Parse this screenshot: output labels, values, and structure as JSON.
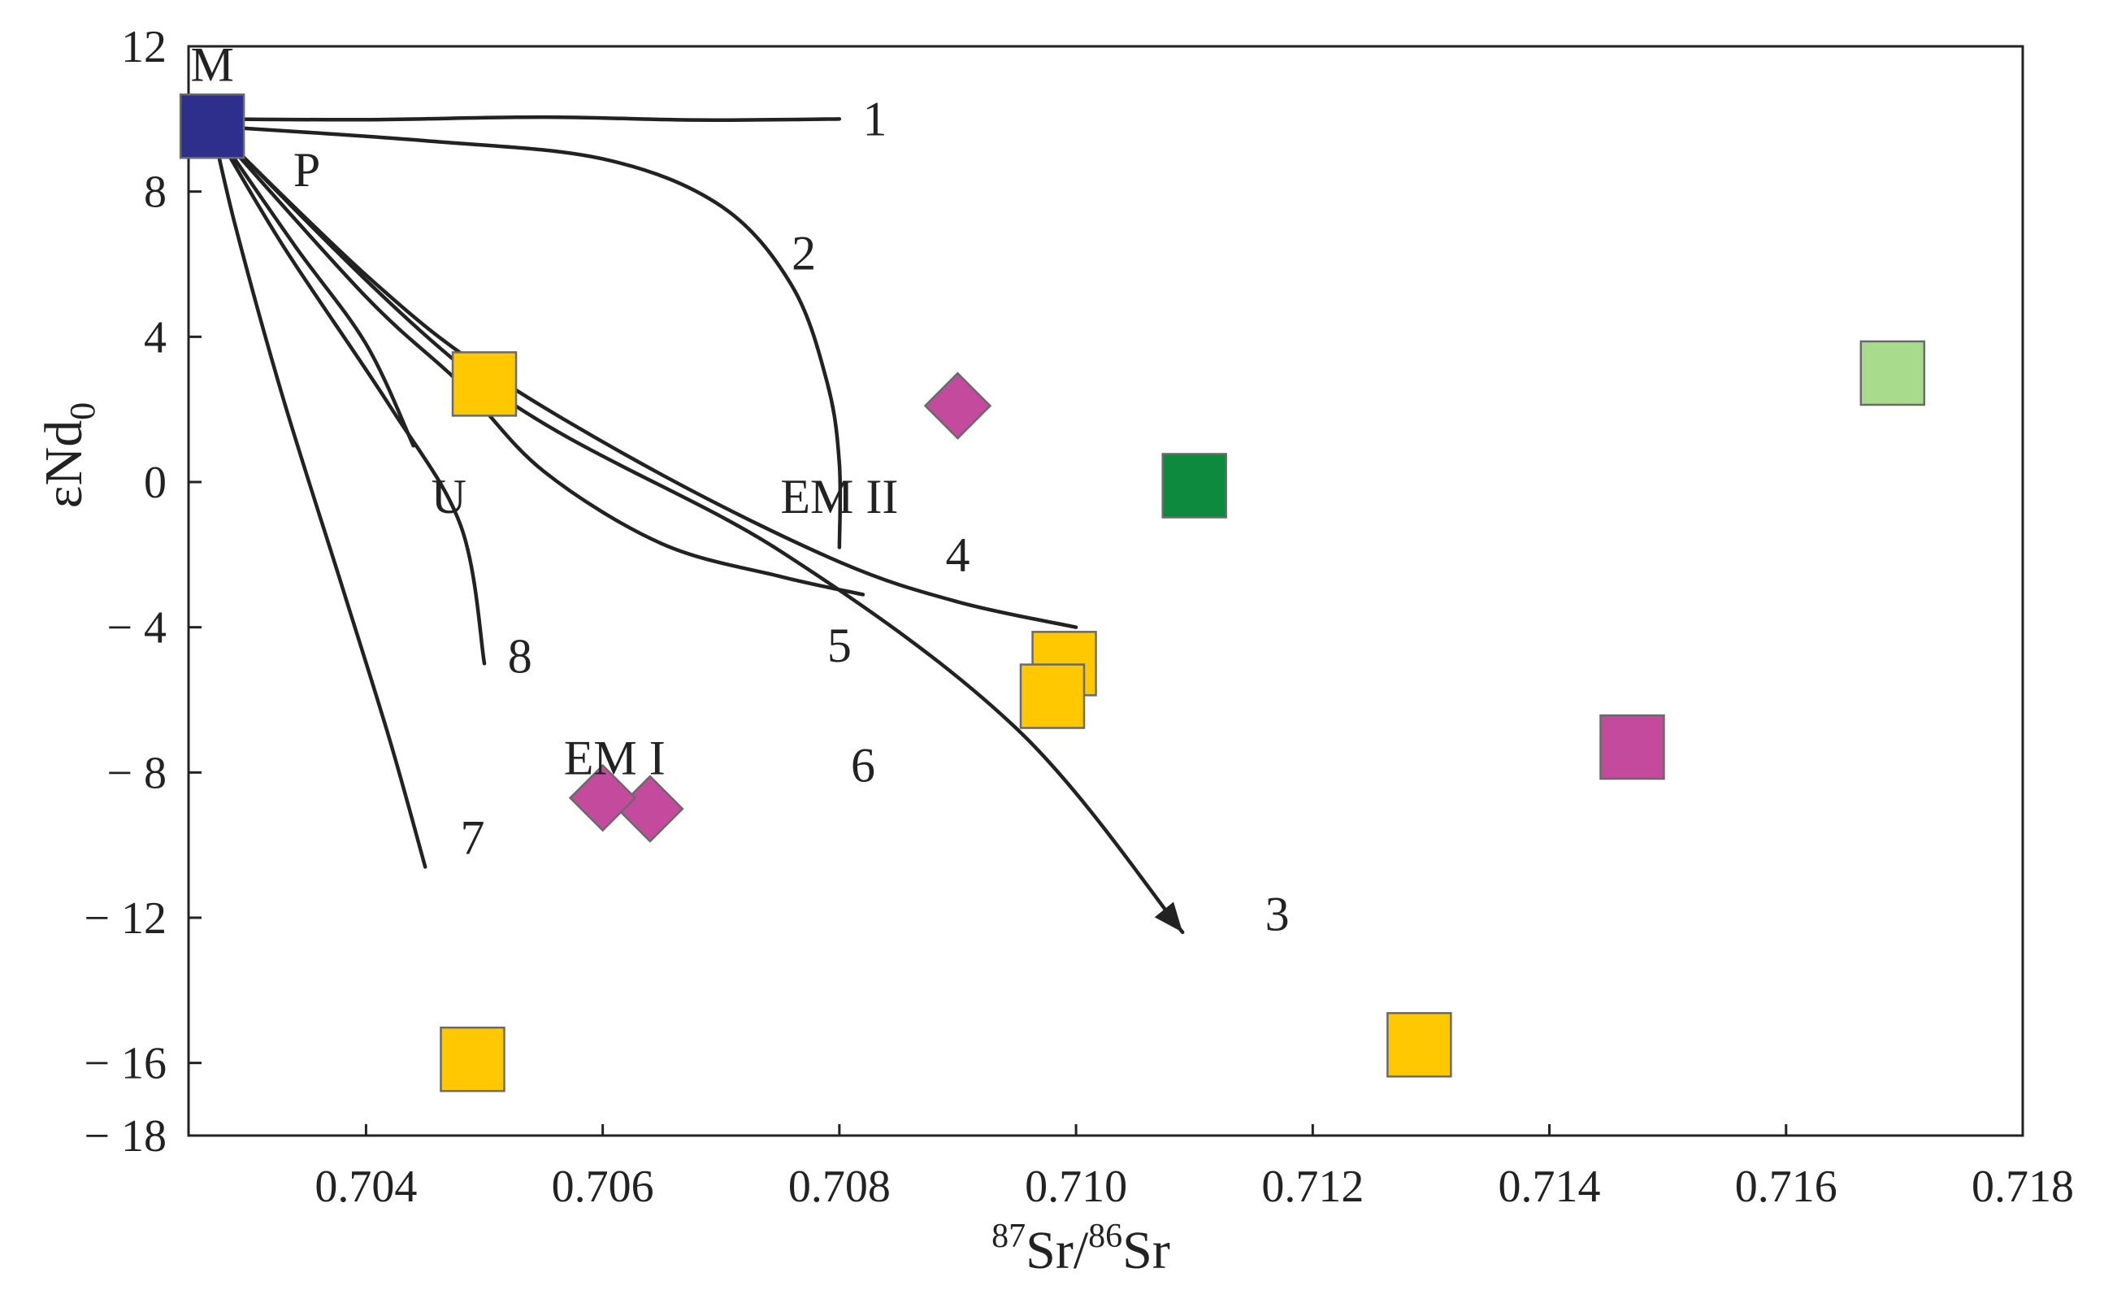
{
  "chart_data": {
    "type": "scatter",
    "title": "",
    "xlabel_sup1": "87",
    "xlabel_mid": "Sr/",
    "xlabel_sup2": "86",
    "xlabel_end": "Sr",
    "ylabel_main": "εNd",
    "ylabel_sub": "0",
    "xlim": [
      0.7025,
      0.718
    ],
    "ylim": [
      -18,
      12
    ],
    "x_ticks": [
      0.704,
      0.706,
      0.708,
      0.71,
      0.712,
      0.714,
      0.716,
      0.718
    ],
    "x_tick_labels": [
      "0.704",
      "0.706",
      "0.708",
      "0.710",
      "0.712",
      "0.714",
      "0.716",
      "0.718"
    ],
    "y_ticks": [
      12,
      8,
      4,
      0,
      -4,
      -8,
      -12,
      -16,
      -18
    ],
    "y_tick_labels": [
      "12",
      "8",
      "4",
      "0",
      "− 4",
      "− 8",
      "− 12",
      "− 16",
      "− 18"
    ],
    "grid": false,
    "colors": {
      "yellow": "#FFC800",
      "magenta": "#C44A9E",
      "navy": "#2E2E8C",
      "green": "#0E8A3E",
      "lightgreen": "#A8DC8C",
      "ink": "#222222"
    },
    "points": [
      {
        "shape": "square",
        "color": "#2E2E8C",
        "x": 0.7027,
        "y": 9.8
      },
      {
        "shape": "square",
        "color": "#FFC800",
        "x": 0.705,
        "y": 2.7
      },
      {
        "shape": "square",
        "color": "#FFC800",
        "x": 0.7099,
        "y": -5.0
      },
      {
        "shape": "square",
        "color": "#FFC800",
        "x": 0.7098,
        "y": -5.9
      },
      {
        "shape": "square",
        "color": "#FFC800",
        "x": 0.7049,
        "y": -15.9
      },
      {
        "shape": "square",
        "color": "#FFC800",
        "x": 0.7129,
        "y": -15.5
      },
      {
        "shape": "diamond",
        "color": "#C44A9E",
        "x": 0.709,
        "y": 2.1
      },
      {
        "shape": "diamond",
        "color": "#C44A9E",
        "x": 0.7064,
        "y": -9.0
      },
      {
        "shape": "diamond",
        "color": "#C44A9E",
        "x": 0.706,
        "y": -8.7
      },
      {
        "shape": "square",
        "color": "#0E8A3E",
        "x": 0.711,
        "y": -0.1
      },
      {
        "shape": "square",
        "color": "#C44A9E",
        "x": 0.7147,
        "y": -7.3
      },
      {
        "shape": "square",
        "color": "#A8DC8C",
        "x": 0.7169,
        "y": 3.0
      }
    ],
    "curves": [
      {
        "name": "1",
        "points": [
          [
            0.7027,
            10.0
          ],
          [
            0.704,
            9.98
          ],
          [
            0.7055,
            10.05
          ],
          [
            0.7068,
            9.97
          ],
          [
            0.708,
            10.0
          ]
        ]
      },
      {
        "name": "2",
        "points": [
          [
            0.7027,
            9.8
          ],
          [
            0.7045,
            9.4
          ],
          [
            0.706,
            8.9
          ],
          [
            0.707,
            7.6
          ],
          [
            0.7076,
            5.4
          ],
          [
            0.7079,
            2.7
          ],
          [
            0.708,
            0.5
          ],
          [
            0.708,
            -1.8
          ]
        ]
      },
      {
        "name": "3",
        "points": [
          [
            0.7027,
            9.8
          ],
          [
            0.705,
            2.7
          ],
          [
            0.7075,
            -1.9
          ],
          [
            0.7095,
            -6.8
          ],
          [
            0.7109,
            -12.4
          ]
        ]
      },
      {
        "name": "4",
        "points": [
          [
            0.7027,
            9.8
          ],
          [
            0.704,
            5.7
          ],
          [
            0.705,
            3.1
          ],
          [
            0.7065,
            0.2
          ],
          [
            0.708,
            -2.2
          ],
          [
            0.709,
            -3.3
          ],
          [
            0.71,
            -4.0
          ]
        ]
      },
      {
        "name": "5",
        "points": [
          [
            0.7027,
            9.8
          ],
          [
            0.704,
            5.1
          ],
          [
            0.7048,
            2.7
          ],
          [
            0.7055,
            0.3
          ],
          [
            0.7065,
            -1.7
          ],
          [
            0.7075,
            -2.6
          ],
          [
            0.7082,
            -3.1
          ]
        ]
      },
      {
        "name": "7",
        "points": [
          [
            0.7027,
            9.8
          ],
          [
            0.7029,
            7.0
          ],
          [
            0.7033,
            2.3
          ],
          [
            0.7038,
            -2.9
          ],
          [
            0.7042,
            -7.1
          ],
          [
            0.7045,
            -10.6
          ]
        ]
      },
      {
        "name": "8",
        "points": [
          [
            0.7027,
            9.8
          ],
          [
            0.7033,
            6.5
          ],
          [
            0.7042,
            2.1
          ],
          [
            0.7048,
            -1.2
          ],
          [
            0.705,
            -5.0
          ]
        ]
      },
      {
        "name": "U",
        "points": [
          [
            0.7027,
            9.8
          ],
          [
            0.7034,
            6.5
          ],
          [
            0.704,
            3.8
          ],
          [
            0.7044,
            1.0
          ]
        ]
      }
    ],
    "labels": [
      {
        "text": "M",
        "x": 0.7027,
        "y": 11.5
      },
      {
        "text": "P",
        "x": 0.7035,
        "y": 8.6
      },
      {
        "text": "1",
        "x": 0.7083,
        "y": 10.0
      },
      {
        "text": "2",
        "x": 0.7077,
        "y": 6.3
      },
      {
        "text": "EM II",
        "x": 0.708,
        "y": -0.4
      },
      {
        "text": "4",
        "x": 0.709,
        "y": -2.0
      },
      {
        "text": "5",
        "x": 0.708,
        "y": -4.5
      },
      {
        "text": "U",
        "x": 0.7047,
        "y": -0.4
      },
      {
        "text": "8",
        "x": 0.7053,
        "y": -4.8
      },
      {
        "text": "6",
        "x": 0.7082,
        "y": -7.8
      },
      {
        "text": "EM I",
        "x": 0.7061,
        "y": -7.6
      },
      {
        "text": "7",
        "x": 0.7049,
        "y": -9.8
      },
      {
        "text": "3",
        "x": 0.7117,
        "y": -11.9
      }
    ],
    "arrow": {
      "curve": "3",
      "at": [
        0.7109,
        -12.4
      ]
    }
  }
}
